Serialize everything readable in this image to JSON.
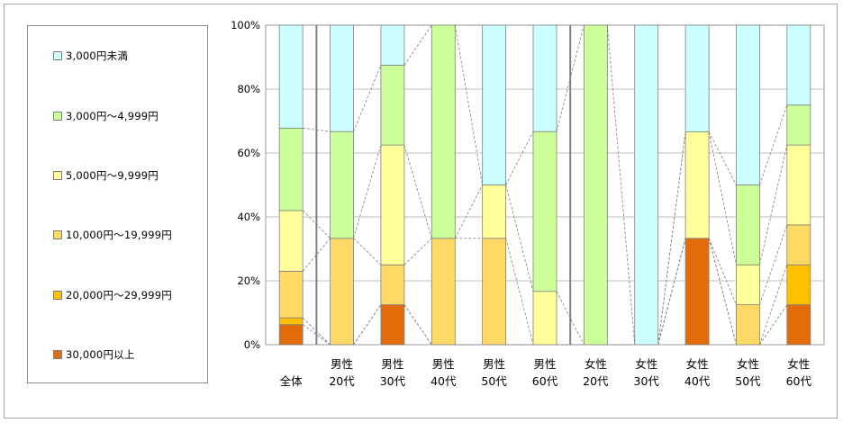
{
  "chart_data": {
    "type": "bar",
    "stacked": true,
    "normalized": true,
    "categories": [
      {
        "top": "全体",
        "bottom": ""
      },
      {
        "top": "男性",
        "bottom": "20代"
      },
      {
        "top": "男性",
        "bottom": "30代"
      },
      {
        "top": "男性",
        "bottom": "40代"
      },
      {
        "top": "男性",
        "bottom": "50代"
      },
      {
        "top": "男性",
        "bottom": "60代"
      },
      {
        "top": "女性",
        "bottom": "20代"
      },
      {
        "top": "女性",
        "bottom": "30代"
      },
      {
        "top": "女性",
        "bottom": "40代"
      },
      {
        "top": "女性",
        "bottom": "50代"
      },
      {
        "top": "女性",
        "bottom": "60代"
      }
    ],
    "series": [
      {
        "name": "30,000円以上",
        "color": "#E36C0A",
        "values": [
          6.3,
          0,
          12.5,
          0,
          0,
          0,
          0,
          0,
          33.3,
          0,
          12.5
        ]
      },
      {
        "name": "20,000円～29,999円",
        "color": "#FFC000",
        "values": [
          2.1,
          0,
          0,
          0,
          0,
          0,
          0,
          0,
          0,
          0,
          12.5
        ]
      },
      {
        "name": "10,000円～19,999円",
        "color": "#FFD966",
        "values": [
          14.6,
          33.3,
          12.5,
          33.3,
          33.3,
          0,
          0,
          0,
          0,
          12.5,
          12.5
        ]
      },
      {
        "name": "5,000円～9,999円",
        "color": "#FFFF99",
        "values": [
          19.0,
          0,
          37.5,
          0,
          16.7,
          16.7,
          0,
          0,
          33.3,
          12.5,
          25.0
        ]
      },
      {
        "name": "3,000円～4,999円",
        "color": "#CCFF99",
        "values": [
          25.8,
          33.4,
          25.0,
          66.7,
          0,
          50.0,
          100,
          0,
          0,
          25.0,
          12.5
        ]
      },
      {
        "name": "3,000円未満",
        "color": "#CCFFFF",
        "values": [
          32.2,
          33.3,
          12.5,
          0,
          50.0,
          33.3,
          0,
          100,
          33.4,
          50.0,
          25.0
        ]
      }
    ],
    "y_ticks": [
      "0%",
      "20%",
      "40%",
      "60%",
      "80%",
      "100%"
    ],
    "ylim": [
      0,
      100
    ],
    "grid": true,
    "series_lines": true,
    "group_separators_after": [
      0,
      5
    ],
    "legend_position": "left",
    "legend_order": [
      "3,000円未満",
      "3,000円～4,999円",
      "5,000円～9,999円",
      "10,000円～19,999円",
      "20,000円～29,999円",
      "30,000円以上"
    ]
  }
}
